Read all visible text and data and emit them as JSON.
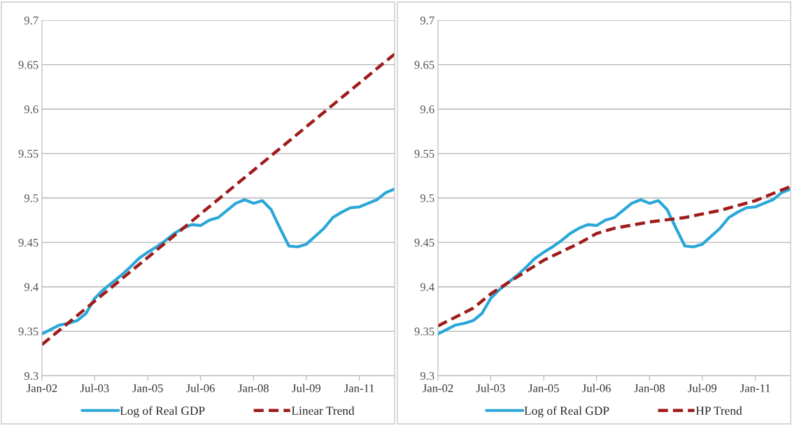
{
  "chart_data": [
    {
      "type": "line",
      "x": [
        "2002-01",
        "2002-04",
        "2002-07",
        "2002-10",
        "2003-01",
        "2003-04",
        "2003-07",
        "2003-10",
        "2004-01",
        "2004-04",
        "2004-07",
        "2004-10",
        "2005-01",
        "2005-04",
        "2005-07",
        "2005-10",
        "2006-01",
        "2006-04",
        "2006-07",
        "2006-10",
        "2007-01",
        "2007-04",
        "2007-07",
        "2007-10",
        "2008-01",
        "2008-04",
        "2008-07",
        "2008-10",
        "2009-01",
        "2009-04",
        "2009-07",
        "2009-10",
        "2010-01",
        "2010-04",
        "2010-07",
        "2010-10",
        "2011-01",
        "2011-04",
        "2011-07",
        "2011-10",
        "2012-01"
      ],
      "series": [
        {
          "name": "Log of Real GDP",
          "color": "#2aa7d8",
          "line_style": "solid",
          "values": [
            9.347,
            9.352,
            9.357,
            9.359,
            9.362,
            9.37,
            9.387,
            9.397,
            9.405,
            9.413,
            9.422,
            9.432,
            9.439,
            9.445,
            9.452,
            9.46,
            9.466,
            9.47,
            9.469,
            9.475,
            9.478,
            9.486,
            9.494,
            9.498,
            9.494,
            9.497,
            9.487,
            9.466,
            9.446,
            9.445,
            9.448,
            9.457,
            9.466,
            9.478,
            9.484,
            9.489,
            9.49,
            9.494,
            9.498,
            9.506,
            9.51
          ]
        },
        {
          "name": "Linear Trend",
          "color": "#a01c1c",
          "line_style": "dashed",
          "x": [
            "2002-01",
            "2012-01"
          ],
          "values": [
            9.335,
            9.662
          ]
        }
      ],
      "xlim": [
        "2002-01",
        "2012-01"
      ],
      "xticks": [
        {
          "value": "2002-01",
          "label": "Jan-02"
        },
        {
          "value": "2003-07",
          "label": "Jul-03"
        },
        {
          "value": "2005-01",
          "label": "Jan-05"
        },
        {
          "value": "2006-07",
          "label": "Jul-06"
        },
        {
          "value": "2008-01",
          "label": "Jan-08"
        },
        {
          "value": "2009-07",
          "label": "Jul-09"
        },
        {
          "value": "2011-01",
          "label": "Jan-11"
        }
      ],
      "ylim": [
        9.3,
        9.7
      ],
      "yticks": [
        9.3,
        9.35,
        9.4,
        9.45,
        9.5,
        9.55,
        9.6,
        9.65,
        9.7
      ],
      "grid": "y",
      "legend": "bottom"
    },
    {
      "type": "line",
      "x": [
        "2002-01",
        "2002-04",
        "2002-07",
        "2002-10",
        "2003-01",
        "2003-04",
        "2003-07",
        "2003-10",
        "2004-01",
        "2004-04",
        "2004-07",
        "2004-10",
        "2005-01",
        "2005-04",
        "2005-07",
        "2005-10",
        "2006-01",
        "2006-04",
        "2006-07",
        "2006-10",
        "2007-01",
        "2007-04",
        "2007-07",
        "2007-10",
        "2008-01",
        "2008-04",
        "2008-07",
        "2008-10",
        "2009-01",
        "2009-04",
        "2009-07",
        "2009-10",
        "2010-01",
        "2010-04",
        "2010-07",
        "2010-10",
        "2011-01",
        "2011-04",
        "2011-07",
        "2011-10",
        "2012-01"
      ],
      "series": [
        {
          "name": "Log of Real GDP",
          "color": "#2aa7d8",
          "line_style": "solid",
          "values": [
            9.347,
            9.352,
            9.357,
            9.359,
            9.362,
            9.37,
            9.387,
            9.397,
            9.405,
            9.413,
            9.422,
            9.432,
            9.439,
            9.445,
            9.452,
            9.46,
            9.466,
            9.47,
            9.469,
            9.475,
            9.478,
            9.486,
            9.494,
            9.498,
            9.494,
            9.497,
            9.487,
            9.466,
            9.446,
            9.445,
            9.448,
            9.457,
            9.466,
            9.478,
            9.484,
            9.489,
            9.49,
            9.494,
            9.498,
            9.506,
            9.51
          ]
        },
        {
          "name": "HP Trend",
          "color": "#a01c1c",
          "line_style": "dashed",
          "x": [
            "2002-01",
            "2003-01",
            "2003-07",
            "2004-01",
            "2005-01",
            "2006-01",
            "2006-07",
            "2007-01",
            "2008-01",
            "2009-01",
            "2009-07",
            "2010-01",
            "2011-01",
            "2012-01"
          ],
          "values": [
            9.356,
            9.376,
            9.392,
            9.405,
            9.43,
            9.449,
            9.46,
            9.466,
            9.473,
            9.478,
            9.482,
            9.486,
            9.497,
            9.513
          ]
        }
      ],
      "xlim": [
        "2002-01",
        "2012-01"
      ],
      "xticks": [
        {
          "value": "2002-01",
          "label": "Jan-02"
        },
        {
          "value": "2003-07",
          "label": "Jul-03"
        },
        {
          "value": "2005-01",
          "label": "Jan-05"
        },
        {
          "value": "2006-07",
          "label": "Jul-06"
        },
        {
          "value": "2008-01",
          "label": "Jan-08"
        },
        {
          "value": "2009-07",
          "label": "Jul-09"
        },
        {
          "value": "2011-01",
          "label": "Jan-11"
        }
      ],
      "ylim": [
        9.3,
        9.7
      ],
      "yticks": [
        9.3,
        9.35,
        9.4,
        9.45,
        9.5,
        9.55,
        9.6,
        9.65,
        9.7
      ],
      "grid": "y",
      "legend": "bottom"
    }
  ]
}
